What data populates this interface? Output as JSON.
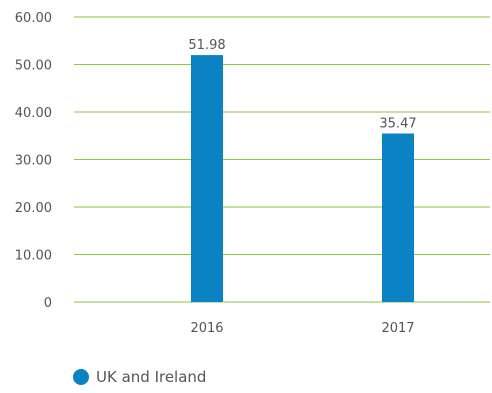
{
  "chart_data": {
    "type": "bar",
    "categories": [
      "2016",
      "2017"
    ],
    "series": [
      {
        "name": "UK and Ireland",
        "values": [
          51.98,
          35.47
        ],
        "labels": [
          "51.98",
          "35.47"
        ],
        "color": "#0a82c4"
      }
    ],
    "y_ticks": [
      "0",
      "10.00",
      "20.00",
      "30.00",
      "40.00",
      "50.00",
      "60.00"
    ],
    "ylim": [
      0,
      60
    ],
    "grid": true,
    "grid_color": "#8dc63f",
    "text_color": "#555555",
    "legend_position": "bottom-left",
    "title": "",
    "xlabel": "",
    "ylabel": ""
  }
}
